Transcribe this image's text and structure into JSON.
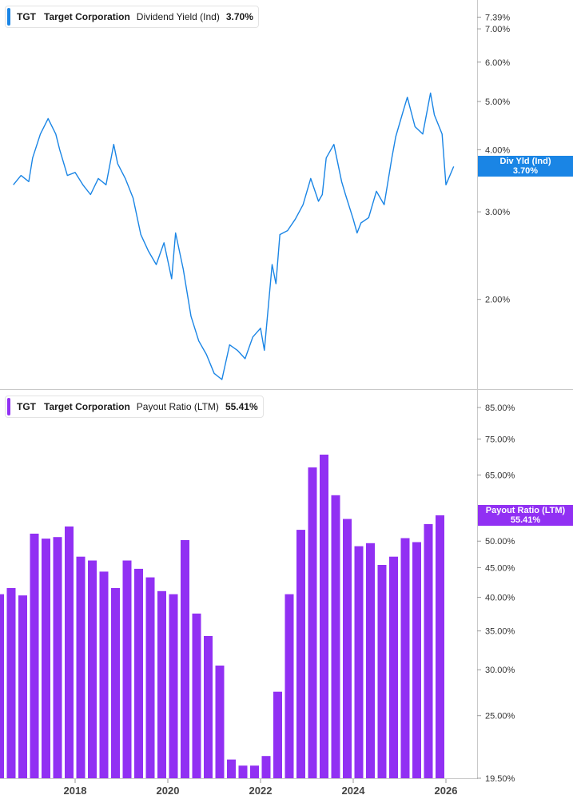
{
  "chart_data": [
    {
      "type": "line",
      "ticker": "TGT",
      "company": "Target Corporation",
      "metric": "Dividend Yield (Ind)",
      "current_value": "3.70%",
      "axis_tag": {
        "label": "Div Yld (Ind)",
        "value": "3.70%"
      },
      "color": "#1a85e5",
      "y_scale": "log",
      "ylim": [
        1.32,
        8.0
      ],
      "yticks": [
        {
          "value": 7.39,
          "label": "7.39%"
        },
        {
          "value": 7.0,
          "label": "7.00%"
        },
        {
          "value": 6.0,
          "label": "6.00%"
        },
        {
          "value": 5.0,
          "label": "5.00%"
        },
        {
          "value": 4.0,
          "label": "4.00%"
        },
        {
          "value": 3.0,
          "label": "3.00%"
        },
        {
          "value": 2.0,
          "label": "2.00%"
        }
      ],
      "x": [
        "2016-09",
        "2016-11",
        "2017-01",
        "2017-02",
        "2017-04",
        "2017-06",
        "2017-08",
        "2017-09",
        "2017-11",
        "2018-01",
        "2018-03",
        "2018-05",
        "2018-07",
        "2018-09",
        "2018-11",
        "2018-12",
        "2019-02",
        "2019-04",
        "2019-06",
        "2019-08",
        "2019-10",
        "2019-12",
        "2020-02",
        "2020-03",
        "2020-05",
        "2020-07",
        "2020-09",
        "2020-11",
        "2021-01",
        "2021-03",
        "2021-05",
        "2021-07",
        "2021-09",
        "2021-11",
        "2022-01",
        "2022-02",
        "2022-04",
        "2022-05",
        "2022-06",
        "2022-08",
        "2022-10",
        "2022-12",
        "2023-02",
        "2023-04",
        "2023-05",
        "2023-06",
        "2023-08",
        "2023-10",
        "2023-11",
        "2024-01",
        "2024-02",
        "2024-03",
        "2024-05",
        "2024-07",
        "2024-09",
        "2024-11",
        "2024-12",
        "2025-02",
        "2025-03",
        "2025-05",
        "2025-07",
        "2025-09",
        "2025-10",
        "2025-12",
        "2026-01",
        "2026-03"
      ],
      "values": [
        3.4,
        3.55,
        3.45,
        3.85,
        4.3,
        4.62,
        4.3,
        4.0,
        3.55,
        3.6,
        3.4,
        3.25,
        3.5,
        3.4,
        4.1,
        3.75,
        3.5,
        3.2,
        2.7,
        2.5,
        2.35,
        2.6,
        2.2,
        2.72,
        2.3,
        1.85,
        1.65,
        1.55,
        1.42,
        1.38,
        1.62,
        1.58,
        1.52,
        1.68,
        1.75,
        1.58,
        2.35,
        2.15,
        2.7,
        2.75,
        2.9,
        3.1,
        3.5,
        3.15,
        3.25,
        3.85,
        4.1,
        3.45,
        3.25,
        2.9,
        2.72,
        2.85,
        2.92,
        3.3,
        3.1,
        3.85,
        4.25,
        4.8,
        5.1,
        4.45,
        4.3,
        5.2,
        4.7,
        4.3,
        3.4,
        3.7
      ],
      "x_axis": {
        "ticks": [
          {
            "date": "2018-01",
            "label": "2018"
          },
          {
            "date": "2020-01",
            "label": "2020"
          },
          {
            "date": "2022-01",
            "label": "2022"
          },
          {
            "date": "2024-01",
            "label": "2024"
          },
          {
            "date": "2026-01",
            "label": "2026"
          }
        ]
      },
      "grid": false
    },
    {
      "type": "bar",
      "ticker": "TGT",
      "company": "Target Corporation",
      "metric": "Payout Ratio (LTM)",
      "current_value": "55.41%",
      "axis_tag": {
        "label": "Payout Ratio (LTM)",
        "value": "55.41%"
      },
      "color": "#9130f3",
      "y_scale": "log",
      "ylim": [
        19.5,
        90.0
      ],
      "yticks": [
        {
          "value": 85.0,
          "label": "85.00%"
        },
        {
          "value": 75.0,
          "label": "75.00%"
        },
        {
          "value": 65.0,
          "label": "65.00%"
        },
        {
          "value": 50.0,
          "label": "50.00%"
        },
        {
          "value": 45.0,
          "label": "45.00%"
        },
        {
          "value": 40.0,
          "label": "40.00%"
        },
        {
          "value": 35.0,
          "label": "35.00%"
        },
        {
          "value": 30.0,
          "label": "30.00%"
        },
        {
          "value": 25.0,
          "label": "25.00%"
        },
        {
          "value": 19.5,
          "label": "19.50%"
        }
      ],
      "categories": [
        "Q3 2016",
        "Q4 2016",
        "Q1 2017",
        "Q2 2017",
        "Q3 2017",
        "Q4 2017",
        "Q1 2018",
        "Q2 2018",
        "Q3 2018",
        "Q4 2018",
        "Q1 2019",
        "Q2 2019",
        "Q3 2019",
        "Q4 2019",
        "Q1 2020",
        "Q2 2020",
        "Q3 2020",
        "Q4 2020",
        "Q1 2021",
        "Q2 2021",
        "Q3 2021",
        "Q4 2021",
        "Q1 2022",
        "Q2 2022",
        "Q3 2022",
        "Q4 2022",
        "Q1 2023",
        "Q2 2023",
        "Q3 2023",
        "Q4 2023",
        "Q1 2024",
        "Q2 2024",
        "Q3 2024",
        "Q4 2024",
        "Q1 2025",
        "Q2 2025",
        "Q3 2025",
        "Q4 2025",
        "Q1 2026"
      ],
      "values": [
        40.5,
        41.5,
        40.3,
        51.5,
        50.5,
        50.8,
        53.0,
        47.0,
        46.3,
        44.3,
        41.5,
        46.3,
        44.8,
        43.3,
        41.0,
        40.5,
        50.2,
        37.5,
        34.3,
        30.5,
        21.0,
        20.5,
        20.5,
        21.3,
        27.5,
        40.5,
        52.3,
        67.0,
        70.5,
        60.0,
        54.6,
        49.0,
        49.6,
        45.5,
        47.0,
        50.6,
        49.8,
        53.5,
        55.41
      ],
      "grid": false
    }
  ]
}
